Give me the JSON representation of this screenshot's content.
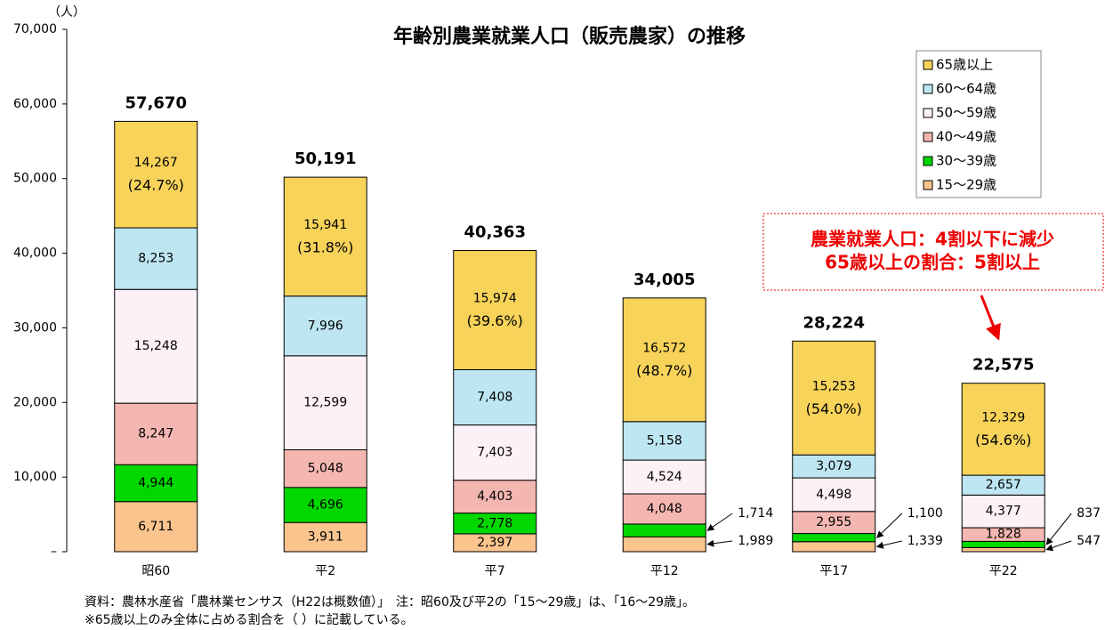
{
  "chart_data": {
    "type": "stacked_bar",
    "title": "年齢別農業就業人口（販売農家）の推移",
    "y_unit": "（人）",
    "categories": [
      "昭60",
      "平2",
      "平7",
      "平12",
      "平17",
      "平22"
    ],
    "ylim": [
      0,
      70000
    ],
    "yticks": [
      {
        "value": 0,
        "label": "–"
      },
      {
        "value": 10000,
        "label": "10,000"
      },
      {
        "value": 20000,
        "label": "20,000"
      },
      {
        "value": 30000,
        "label": "30,000"
      },
      {
        "value": 40000,
        "label": "40,000"
      },
      {
        "value": 50000,
        "label": "50,000"
      },
      {
        "value": 60000,
        "label": "60,000"
      },
      {
        "value": 70000,
        "label": "70,000"
      }
    ],
    "series": [
      {
        "name": "15～29歳",
        "color": "#fbc48e",
        "values": [
          6711,
          3911,
          2397,
          1989,
          1339,
          547
        ],
        "value_labels": [
          "6,711",
          "3,911",
          "2,397",
          "1,989",
          "1,339",
          "547"
        ]
      },
      {
        "name": "30～39歳",
        "color": "#00d800",
        "values": [
          4944,
          4696,
          2778,
          1714,
          1100,
          837
        ],
        "value_labels": [
          "4,944",
          "4,696",
          "2,778",
          "1,714",
          "1,100",
          "837"
        ]
      },
      {
        "name": "40～49歳",
        "color": "#f4b6b0",
        "values": [
          8247,
          5048,
          4403,
          4048,
          2955,
          1828
        ],
        "value_labels": [
          "8,247",
          "5,048",
          "4,403",
          "4,048",
          "2,955",
          "1,828"
        ]
      },
      {
        "name": "50～59歳",
        "color": "#fdf0f6",
        "values": [
          15248,
          12599,
          7403,
          4524,
          4498,
          4377
        ],
        "value_labels": [
          "15,248",
          "12,599",
          "7,403",
          "4,524",
          "4,498",
          "4,377"
        ]
      },
      {
        "name": "60～64歳",
        "color": "#bde6f2",
        "values": [
          8253,
          7996,
          7408,
          5158,
          3079,
          2657
        ],
        "value_labels": [
          "8,253",
          "7,996",
          "7,408",
          "5,158",
          "3,079",
          "2,657"
        ]
      },
      {
        "name": "65歳以上",
        "color": "#f7d35a",
        "values": [
          14267,
          15941,
          15974,
          16572,
          15253,
          12329
        ],
        "value_labels": [
          "14,267",
          "15,941",
          "15,974",
          "16,572",
          "15,253",
          "12,329"
        ],
        "share_values": [
          24.7,
          31.8,
          39.6,
          48.7,
          54.0,
          54.6
        ],
        "share_labels": [
          "(24.7%)",
          "(31.8%)",
          "(39.6%)",
          "(48.7%)",
          "(54.0%)",
          "(54.6%)"
        ]
      }
    ],
    "totals": [
      57670,
      50191,
      40363,
      34005,
      28224,
      22575
    ],
    "total_labels": [
      "57,670",
      "50,191",
      "40,363",
      "34,005",
      "28,224",
      "22,575"
    ],
    "annotation": [
      "農業就業人口：4割以下に減少",
      "65歳以上の割合：5割以上"
    ],
    "notes": [
      "資料：農林水産省「農林業センサス（H22は概数値）」　注：昭60及び平2の「15～29歳」は、「16～29歳」。",
      "※65歳以上のみ全体に占める割合を（ ）に記載している。"
    ],
    "legend": "upper right"
  }
}
